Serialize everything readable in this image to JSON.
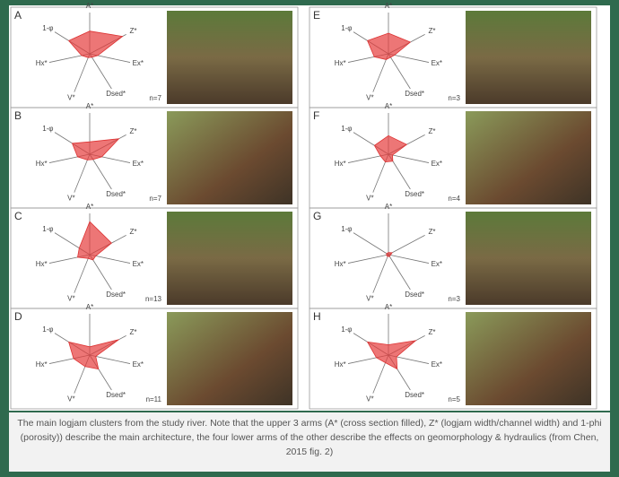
{
  "figure": {
    "arms": [
      "A*",
      "Z*",
      "Ex*",
      "Dsed*",
      "V*",
      "Hx*",
      "1-φ"
    ],
    "panels": [
      {
        "letter": "A",
        "n": "n=7",
        "values": [
          0.55,
          0.9,
          0.2,
          0.1,
          0.1,
          0.2,
          0.6
        ]
      },
      {
        "letter": "B",
        "n": "n=7",
        "values": [
          0.3,
          0.8,
          0.3,
          0.15,
          0.15,
          0.3,
          0.5
        ]
      },
      {
        "letter": "C",
        "n": "n=13",
        "values": [
          0.8,
          0.6,
          0.15,
          0.15,
          0.1,
          0.3,
          0.3
        ]
      },
      {
        "letter": "D",
        "n": "n=11",
        "values": [
          0.2,
          0.8,
          0.15,
          0.4,
          0.3,
          0.4,
          0.6
        ]
      },
      {
        "letter": "E",
        "n": "n=3",
        "values": [
          0.5,
          0.6,
          0.15,
          0.1,
          0.15,
          0.35,
          0.6
        ]
      },
      {
        "letter": "F",
        "n": "n=4",
        "values": [
          0.45,
          0.5,
          0.1,
          0.2,
          0.2,
          0.2,
          0.4
        ]
      },
      {
        "letter": "G",
        "n": "n=3",
        "values": [
          0.05,
          0.1,
          0.05,
          0.05,
          0.05,
          0.05,
          0.05
        ]
      },
      {
        "letter": "H",
        "n": "n=5",
        "values": [
          0.25,
          0.75,
          0.2,
          0.4,
          0.2,
          0.3,
          0.6
        ]
      }
    ],
    "caption": "The main logjam clusters from the study river. Note that the upper 3 arms (A* (cross section filled), Z* (logjam width/channel width) and 1-phi (porosity)) describe the main architecture, the four lower arms of the other describe the effects on geomorphology & hydraulics (from Chen, 2015 fig. 2)"
  }
}
